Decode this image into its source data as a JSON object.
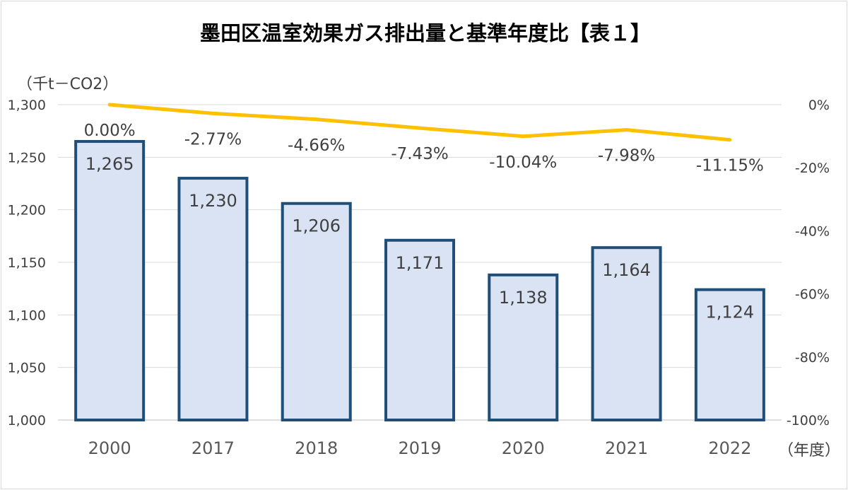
{
  "chart_data": {
    "type": "bar",
    "title": "墨田区温室効果ガス排出量と基準年度比【表１】",
    "ylabel": "（千t－CO2）",
    "xlabel": "（年度）",
    "categories": [
      "2000",
      "2017",
      "2018",
      "2019",
      "2020",
      "2021",
      "2022"
    ],
    "series": [
      {
        "type": "bar",
        "axis": "left",
        "values": [
          1265,
          1230,
          1206,
          1171,
          1138,
          1164,
          1124
        ],
        "labels": [
          "1,265",
          "1,230",
          "1,206",
          "1,171",
          "1,138",
          "1,164",
          "1,124"
        ],
        "color": "#dae3f3",
        "border_color": "#1f4e79"
      },
      {
        "type": "line",
        "axis": "right",
        "values": [
          0.0,
          -2.77,
          -4.66,
          -7.43,
          -10.04,
          -7.98,
          -11.15
        ],
        "labels": [
          "0.00%",
          "-2.77%",
          "-4.66%",
          "-7.43%",
          "-10.04%",
          "-7.98%",
          "-11.15%"
        ],
        "color": "#ffc000"
      }
    ],
    "ylim": [
      1000,
      1300
    ],
    "y_ticks": [
      "1,000",
      "1,050",
      "1,100",
      "1,150",
      "1,200",
      "1,250",
      "1,300"
    ],
    "y2lim": [
      -100,
      0
    ],
    "y2_ticks": [
      "-100%",
      "-80%",
      "-60%",
      "-40%",
      "-20%",
      "0%"
    ],
    "grid": true
  }
}
